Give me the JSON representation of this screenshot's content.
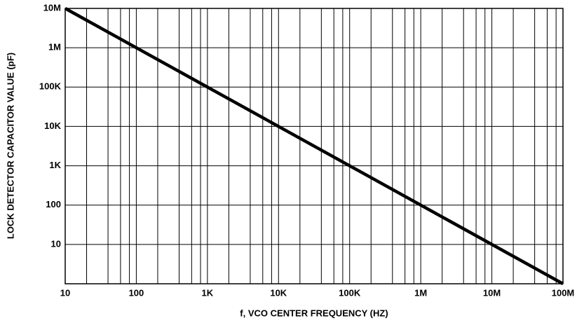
{
  "chart_data": {
    "type": "line",
    "xlabel": "f, VCO CENTER FREQUENCY (HZ)",
    "ylabel": "LOCK DETECTOR CAPACITOR VALUE (pF)",
    "xscale": "log",
    "yscale": "log",
    "grid": true,
    "xlim": [
      10,
      100000000
    ],
    "ylim": [
      1,
      10000000
    ],
    "xticks": [
      10,
      100,
      {
        "value": 1000,
        "label": "1K"
      },
      {
        "value": 10000,
        "label": "10K"
      },
      {
        "value": 100000,
        "label": "100K"
      },
      {
        "value": 1000000,
        "label": "1M"
      },
      {
        "value": 10000000,
        "label": "10M"
      },
      {
        "value": 100000000,
        "label": "100M"
      }
    ],
    "xminorticks": [
      20,
      40,
      60,
      80,
      200,
      400,
      600,
      800,
      2000,
      4000,
      6000,
      8000,
      20000,
      40000,
      60000,
      80000,
      200000,
      400000,
      600000,
      800000,
      2000000,
      4000000,
      6000000,
      8000000,
      20000000,
      40000000,
      60000000,
      80000000
    ],
    "yticks": [
      10,
      100,
      {
        "value": 1000,
        "label": "1K"
      },
      {
        "value": 10000,
        "label": "10K"
      },
      {
        "value": 100000,
        "label": "100K"
      },
      {
        "value": 1000000,
        "label": "1M"
      },
      {
        "value": 10000000,
        "label": "10M"
      }
    ],
    "x": [
      10,
      100000000
    ],
    "series": [
      {
        "color": "#000000",
        "values": [
          10000000,
          1
        ]
      }
    ]
  }
}
